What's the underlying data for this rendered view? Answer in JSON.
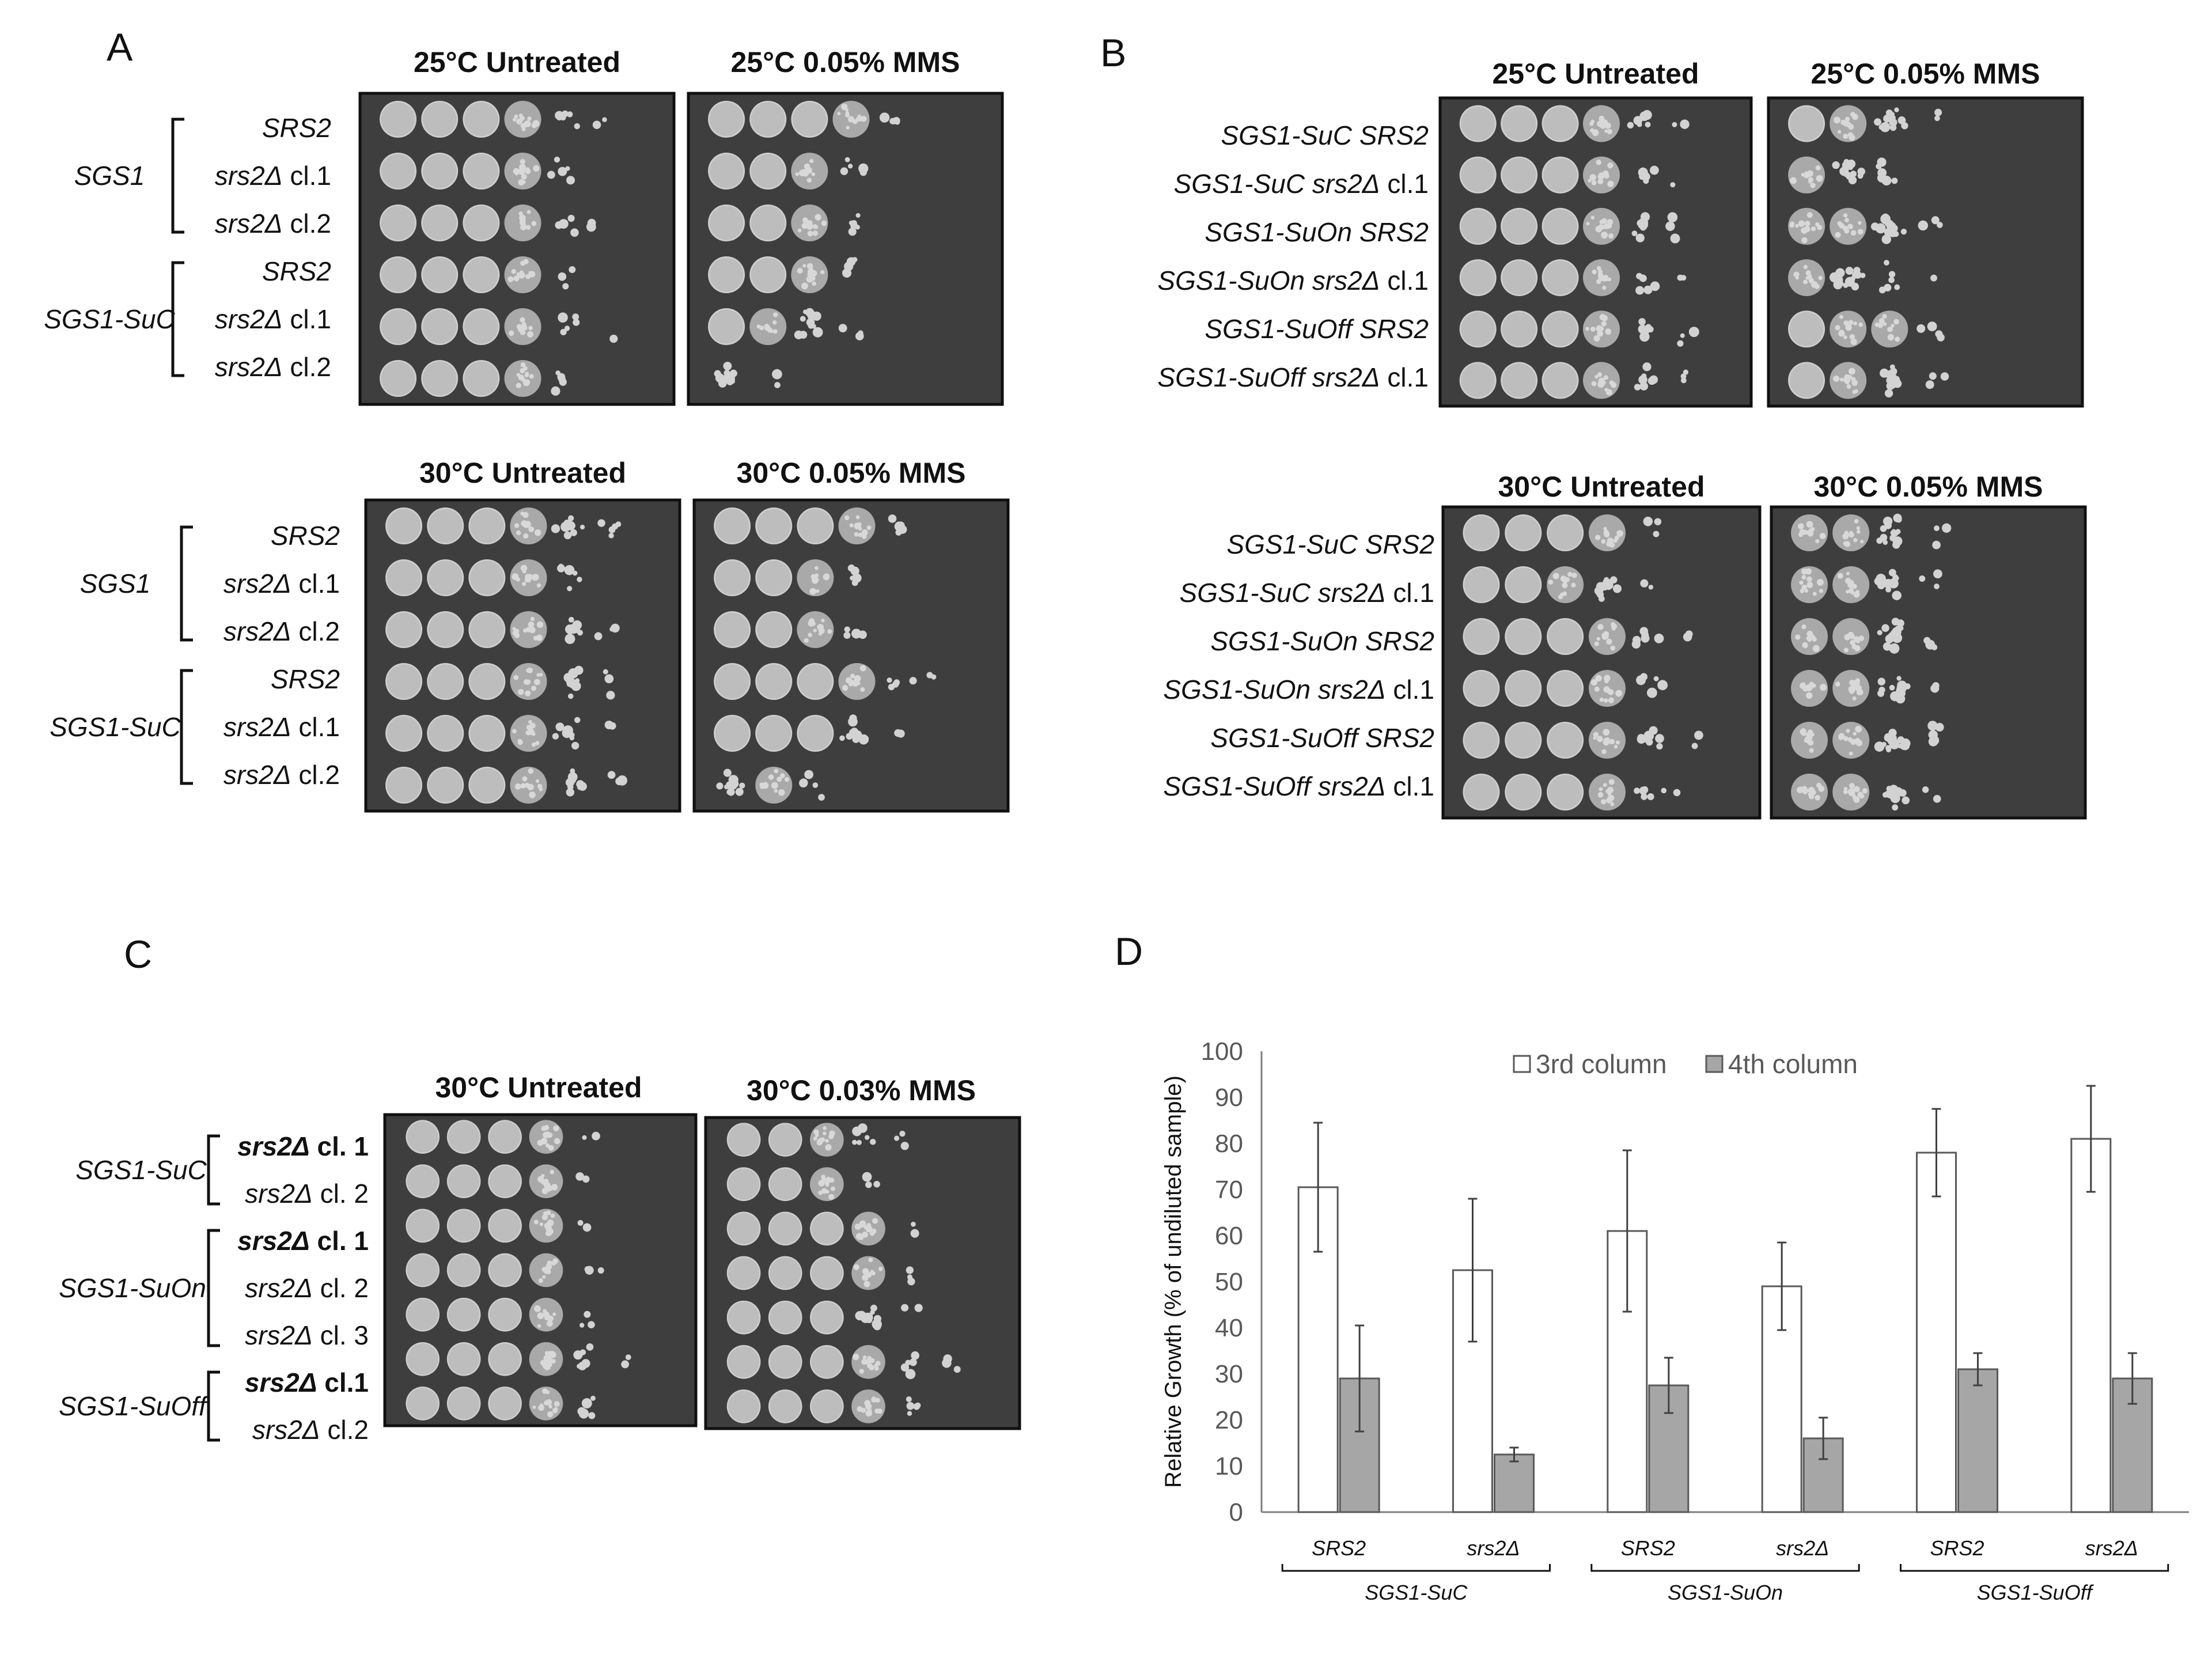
{
  "panels": {
    "A": {
      "letter": "A",
      "top": {
        "headers": [
          "25°C Untreated",
          "25°C 0.05% MMS"
        ],
        "groups": [
          {
            "label": "SGS1",
            "rows": [
              {
                "gene": "SRS2",
                "suffix": ""
              },
              {
                "gene": "srs2Δ",
                "suffix": " cl.1"
              },
              {
                "gene": "srs2Δ",
                "suffix": " cl.2"
              }
            ]
          },
          {
            "label": "SGS1-SuC",
            "rows": [
              {
                "gene": "SRS2",
                "suffix": ""
              },
              {
                "gene": "srs2Δ",
                "suffix": " cl.1"
              },
              {
                "gene": "srs2Δ",
                "suffix": " cl.2"
              }
            ]
          }
        ]
      },
      "bottom": {
        "headers": [
          "30°C Untreated",
          "30°C 0.05% MMS"
        ],
        "groups": [
          {
            "label": "SGS1",
            "rows": [
              {
                "gene": "SRS2",
                "suffix": ""
              },
              {
                "gene": "srs2Δ",
                "suffix": " cl.1"
              },
              {
                "gene": "srs2Δ",
                "suffix": " cl.2"
              }
            ]
          },
          {
            "label": "SGS1-SuC",
            "rows": [
              {
                "gene": "SRS2",
                "suffix": ""
              },
              {
                "gene": "srs2Δ",
                "suffix": " cl.1"
              },
              {
                "gene": "srs2Δ",
                "suffix": " cl.2"
              }
            ]
          }
        ]
      }
    },
    "B": {
      "letter": "B",
      "top": {
        "headers": [
          "25°C Untreated",
          "25°C 0.05% MMS"
        ],
        "rows": [
          {
            "strain": "SGS1-SuC SRS2",
            "suffix": ""
          },
          {
            "strain": "SGS1-SuC srs2Δ",
            "suffix": " cl.1"
          },
          {
            "strain": "SGS1-SuOn SRS2",
            "suffix": ""
          },
          {
            "strain": "SGS1-SuOn srs2Δ",
            "suffix": " cl.1"
          },
          {
            "strain": "SGS1-SuOff SRS2",
            "suffix": ""
          },
          {
            "strain": "SGS1-SuOff srs2Δ",
            "suffix": " cl.1"
          }
        ]
      },
      "bottom": {
        "headers": [
          "30°C Untreated",
          "30°C 0.05% MMS"
        ],
        "rows": [
          {
            "strain": "SGS1-SuC SRS2",
            "suffix": ""
          },
          {
            "strain": "SGS1-SuC srs2Δ",
            "suffix": " cl.1"
          },
          {
            "strain": "SGS1-SuOn SRS2",
            "suffix": ""
          },
          {
            "strain": "SGS1-SuOn srs2Δ",
            "suffix": " cl.1"
          },
          {
            "strain": "SGS1-SuOff SRS2",
            "suffix": ""
          },
          {
            "strain": "SGS1-SuOff srs2Δ",
            "suffix": " cl.1"
          }
        ]
      }
    },
    "C": {
      "letter": "C",
      "headers": [
        "30°C Untreated",
        "30°C 0.03% MMS"
      ],
      "groups": [
        {
          "label": "SGS1-SuC",
          "rows": [
            {
              "gene": "srs2Δ",
              "suffix": " cl. 1",
              "bold": true
            },
            {
              "gene": "srs2Δ",
              "suffix": " cl. 2",
              "bold": false
            }
          ]
        },
        {
          "label": "SGS1-SuOn",
          "rows": [
            {
              "gene": "srs2Δ",
              "suffix": " cl. 1",
              "bold": true
            },
            {
              "gene": "srs2Δ",
              "suffix": " cl. 2",
              "bold": false
            },
            {
              "gene": "srs2Δ",
              "suffix": " cl. 3",
              "bold": false
            }
          ]
        },
        {
          "label": "SGS1-SuOff",
          "rows": [
            {
              "gene": "srs2Δ",
              "suffix": " cl.1",
              "bold": true
            },
            {
              "gene": "srs2Δ",
              "suffix": " cl.2",
              "bold": false
            }
          ]
        }
      ]
    },
    "D": {
      "letter": "D"
    }
  },
  "chart_data": {
    "type": "bar",
    "ylabel": "Relative Growth (% of undiluted sample)",
    "ylim": [
      0,
      100
    ],
    "yticks": [
      0,
      10,
      20,
      30,
      40,
      50,
      60,
      70,
      80,
      90,
      100
    ],
    "legend_position": "top",
    "categories": [
      "SRS2",
      "srs2Δ",
      "SRS2",
      "srs2Δ",
      "SRS2",
      "srs2Δ"
    ],
    "category_groups": [
      {
        "label": "SGS1-SuC",
        "categories": [
          0,
          1
        ]
      },
      {
        "label": "SGS1-SuOn",
        "categories": [
          2,
          3
        ]
      },
      {
        "label": "SGS1-SuOff",
        "categories": [
          4,
          5
        ]
      }
    ],
    "series": [
      {
        "name": "3rd column",
        "color": "#ffffff",
        "values": [
          70.5,
          52.5,
          61.0,
          49.0,
          78.0,
          81.0
        ],
        "errors": [
          14,
          15.5,
          17.5,
          9.5,
          9.5,
          11.5
        ]
      },
      {
        "name": "4th column",
        "color": "#a6a6a6",
        "values": [
          29.0,
          12.5,
          27.5,
          16.0,
          31.0,
          29.0
        ],
        "errors": [
          11.5,
          1.5,
          6.0,
          4.5,
          3.5,
          5.5
        ]
      }
    ]
  }
}
